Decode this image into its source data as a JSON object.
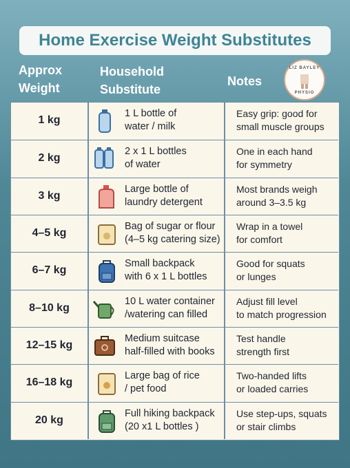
{
  "header": {
    "title": "Home Exercise Weight Substitutes",
    "columns": [
      [
        "Approx",
        "Weight"
      ],
      [
        "Household",
        "Substitute"
      ],
      [
        "Notes"
      ]
    ],
    "logo": [
      "LIZ BAYLEY",
      "PHYSIO"
    ]
  },
  "table": {
    "rows": [
      {
        "weight": "1 kg",
        "substitute": [
          "1 L bottle of",
          "water / milk"
        ],
        "notes": [
          "Easy grip: good for",
          "small muscle groups"
        ]
      },
      {
        "weight": "2 kg",
        "substitute": [
          "2 x 1 L bottles",
          "of water"
        ],
        "notes": [
          "One in each hand",
          "for symmetry"
        ]
      },
      {
        "weight": "3 kg",
        "substitute": [
          "Large bottle of",
          "laundry detergent"
        ],
        "notes": [
          "Most brands weigh",
          "around 3–3.5 kg"
        ]
      },
      {
        "weight": "4–5 kg",
        "substitute": [
          "Bag of sugar or flour",
          "(4–5 kg catering size)"
        ],
        "notes": [
          "Wrap in a towel",
          "for comfort"
        ]
      },
      {
        "weight": "6–7 kg",
        "substitute": [
          "Small backpack",
          "with 6 x 1 L bottles"
        ],
        "notes": [
          "Good for squats",
          "or lunges"
        ]
      },
      {
        "weight": "8–10 kg",
        "substitute": [
          "10 L water container",
          "/watering can filled"
        ],
        "notes": [
          "Adjust fill level",
          "to match progression"
        ]
      },
      {
        "weight": "12–15 kg",
        "substitute": [
          "Medium suitcase",
          "half-filled with books"
        ],
        "notes": [
          "Test handle",
          "strength first"
        ]
      },
      {
        "weight": "16–18 kg",
        "substitute": [
          "Large bag of rice",
          "/ pet food"
        ],
        "notes": [
          "Two-handed lifts",
          "or loaded carries"
        ]
      },
      {
        "weight": "20 kg",
        "substitute": [
          "Full hiking backpack",
          "(20 x1 L bottles )"
        ],
        "notes": [
          "Use step-ups, squats",
          "or stair climbs"
        ]
      }
    ]
  }
}
